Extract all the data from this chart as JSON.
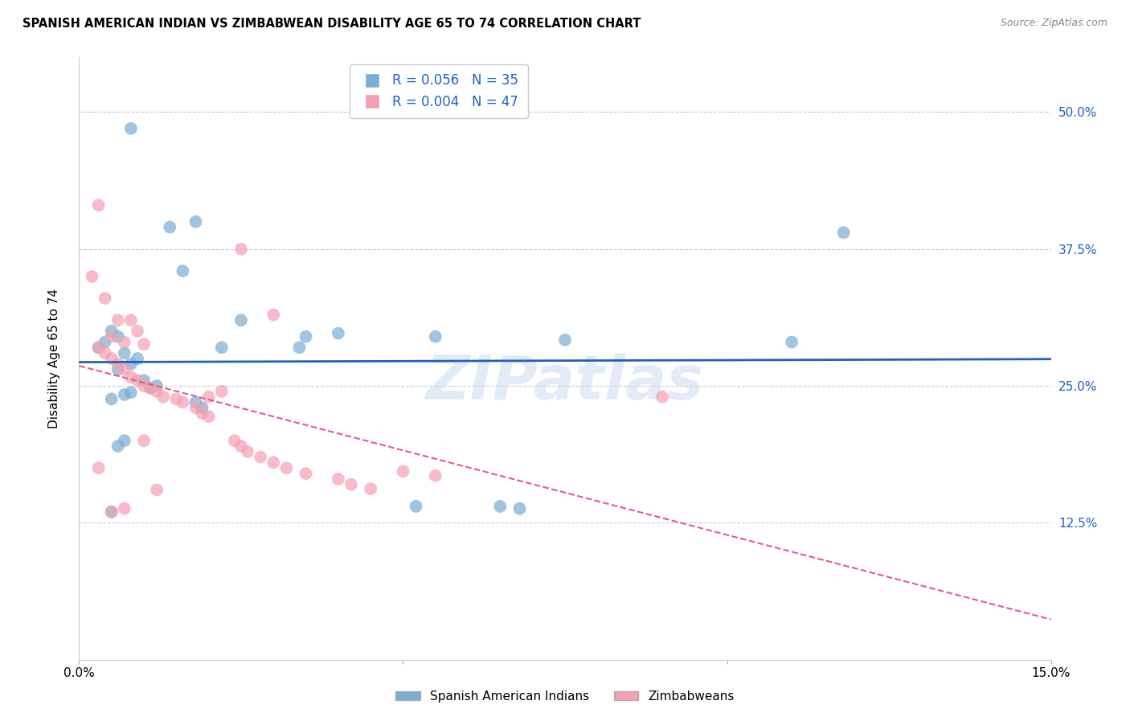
{
  "title": "SPANISH AMERICAN INDIAN VS ZIMBABWEAN DISABILITY AGE 65 TO 74 CORRELATION CHART",
  "source": "Source: ZipAtlas.com",
  "ylabel": "Disability Age 65 to 74",
  "xlim": [
    0,
    0.15
  ],
  "ylim": [
    0,
    0.55
  ],
  "yticks": [
    0.0,
    0.125,
    0.25,
    0.375,
    0.5
  ],
  "yticklabels": [
    "",
    "12.5%",
    "25.0%",
    "37.5%",
    "50.0%"
  ],
  "blue_R": 0.056,
  "blue_N": 35,
  "pink_R": 0.004,
  "pink_N": 47,
  "legend_label_blue": "Spanish American Indians",
  "legend_label_pink": "Zimbabweans",
  "blue_scatter_x": [
    0.008,
    0.014,
    0.018,
    0.016,
    0.025,
    0.022,
    0.005,
    0.006,
    0.004,
    0.003,
    0.007,
    0.009,
    0.008,
    0.006,
    0.01,
    0.012,
    0.011,
    0.008,
    0.007,
    0.005,
    0.018,
    0.019,
    0.04,
    0.035,
    0.034,
    0.118,
    0.055,
    0.075,
    0.065,
    0.068,
    0.11,
    0.052,
    0.005,
    0.007,
    0.006
  ],
  "blue_scatter_y": [
    0.485,
    0.395,
    0.4,
    0.355,
    0.31,
    0.285,
    0.3,
    0.295,
    0.29,
    0.285,
    0.28,
    0.275,
    0.27,
    0.265,
    0.255,
    0.25,
    0.248,
    0.244,
    0.242,
    0.238,
    0.235,
    0.23,
    0.298,
    0.295,
    0.285,
    0.39,
    0.295,
    0.292,
    0.14,
    0.138,
    0.29,
    0.14,
    0.135,
    0.2,
    0.195
  ],
  "pink_scatter_x": [
    0.003,
    0.002,
    0.004,
    0.006,
    0.008,
    0.009,
    0.005,
    0.007,
    0.01,
    0.003,
    0.004,
    0.005,
    0.006,
    0.007,
    0.008,
    0.009,
    0.01,
    0.011,
    0.012,
    0.013,
    0.015,
    0.016,
    0.018,
    0.019,
    0.02,
    0.022,
    0.024,
    0.025,
    0.026,
    0.028,
    0.03,
    0.032,
    0.035,
    0.04,
    0.042,
    0.045,
    0.05,
    0.055,
    0.03,
    0.025,
    0.02,
    0.01,
    0.005,
    0.007,
    0.012,
    0.09,
    0.003
  ],
  "pink_scatter_y": [
    0.415,
    0.35,
    0.33,
    0.31,
    0.31,
    0.3,
    0.295,
    0.29,
    0.288,
    0.285,
    0.28,
    0.275,
    0.27,
    0.265,
    0.258,
    0.255,
    0.25,
    0.248,
    0.245,
    0.24,
    0.238,
    0.235,
    0.23,
    0.225,
    0.222,
    0.245,
    0.2,
    0.195,
    0.19,
    0.185,
    0.18,
    0.175,
    0.17,
    0.165,
    0.16,
    0.156,
    0.172,
    0.168,
    0.315,
    0.375,
    0.24,
    0.2,
    0.135,
    0.138,
    0.155,
    0.24,
    0.175
  ],
  "background_color": "#ffffff",
  "blue_color": "#7aadd4",
  "pink_color": "#f4a0b0",
  "blue_line_color": "#2060c0",
  "pink_line_color": "#e06080",
  "watermark": "ZIPatlas",
  "grid_color": "#cccccc"
}
